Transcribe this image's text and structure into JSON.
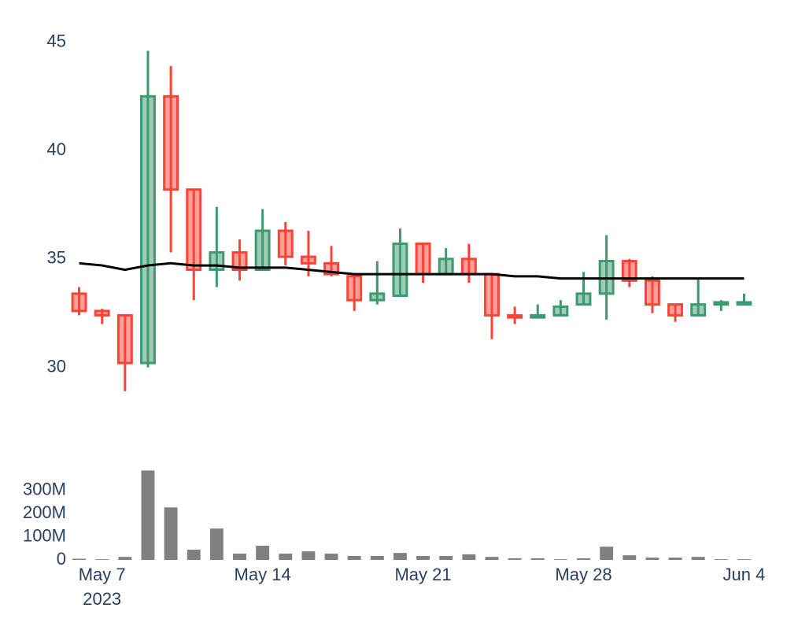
{
  "chart_data": {
    "type": "candlestick",
    "x": [
      "2023-05-06",
      "2023-05-07",
      "2023-05-08",
      "2023-05-09",
      "2023-05-10",
      "2023-05-11",
      "2023-05-12",
      "2023-05-13",
      "2023-05-14",
      "2023-05-15",
      "2023-05-16",
      "2023-05-17",
      "2023-05-18",
      "2023-05-19",
      "2023-05-20",
      "2023-05-21",
      "2023-05-22",
      "2023-05-23",
      "2023-05-24",
      "2023-05-25",
      "2023-05-26",
      "2023-05-27",
      "2023-05-28",
      "2023-05-29",
      "2023-05-30",
      "2023-05-31",
      "2023-06-01",
      "2023-06-02",
      "2023-06-03",
      "2023-06-04"
    ],
    "open": [
      33.4,
      32.6,
      32.4,
      30.2,
      42.5,
      38.2,
      34.5,
      35.3,
      34.5,
      36.3,
      35.1,
      34.8,
      34.2,
      33.1,
      33.3,
      35.7,
      34.3,
      35.0,
      34.3,
      32.4,
      32.3,
      32.4,
      32.9,
      33.4,
      34.9,
      34.0,
      32.9,
      32.4,
      32.9,
      32.9
    ],
    "high": [
      33.7,
      32.7,
      32.4,
      44.6,
      43.9,
      38.2,
      37.4,
      35.9,
      37.3,
      36.7,
      36.3,
      35.6,
      34.2,
      34.9,
      36.4,
      35.7,
      35.5,
      35.7,
      34.3,
      32.8,
      32.9,
      33.1,
      34.4,
      36.1,
      35.0,
      34.2,
      32.9,
      34.1,
      33.1,
      33.4
    ],
    "low": [
      32.4,
      32.0,
      28.9,
      30.0,
      35.3,
      33.1,
      33.7,
      34.0,
      34.5,
      34.7,
      34.2,
      34.2,
      32.6,
      32.9,
      33.3,
      33.9,
      34.3,
      33.9,
      31.3,
      32.0,
      32.3,
      32.4,
      32.9,
      32.2,
      33.7,
      32.5,
      32.1,
      32.4,
      32.6,
      32.9
    ],
    "close": [
      32.6,
      32.4,
      30.2,
      42.5,
      38.2,
      34.5,
      35.3,
      34.5,
      36.3,
      35.1,
      34.8,
      34.3,
      33.1,
      33.4,
      35.7,
      34.3,
      35.0,
      34.3,
      32.4,
      32.3,
      32.4,
      32.8,
      33.4,
      34.9,
      34.0,
      32.9,
      32.4,
      32.9,
      33.0,
      33.0
    ],
    "increasing_color": "#3d9970",
    "decreasing_color": "#ff4136",
    "ma": {
      "color": "#000000",
      "values": [
        34.8,
        34.7,
        34.5,
        34.7,
        34.8,
        34.7,
        34.7,
        34.6,
        34.6,
        34.6,
        34.5,
        34.4,
        34.3,
        34.3,
        34.3,
        34.3,
        34.3,
        34.3,
        34.3,
        34.2,
        34.2,
        34.1,
        34.1,
        34.1,
        34.1,
        34.1,
        34.1,
        34.1,
        34.1,
        34.1
      ]
    },
    "xlim": [
      "2023-05-05T12:00",
      "2023-06-04T12:00"
    ],
    "xticks": [
      {
        "value": "2023-05-07",
        "label": "May 7"
      },
      {
        "value": "2023-05-14",
        "label": "May 14"
      },
      {
        "value": "2023-05-21",
        "label": "May 21"
      },
      {
        "value": "2023-05-28",
        "label": "May 28"
      },
      {
        "value": "2023-06-04",
        "label": "Jun 4"
      }
    ],
    "xtick_year": "2023",
    "ylim": [
      28.6,
      45.2
    ],
    "yticks": [
      30,
      35,
      40,
      45
    ],
    "volume": {
      "color": "#808080",
      "values": [
        5000000,
        3000000,
        13000000,
        385000000,
        226000000,
        44000000,
        135000000,
        27000000,
        61000000,
        27000000,
        37000000,
        27000000,
        17000000,
        17000000,
        30000000,
        17000000,
        17000000,
        24000000,
        13000000,
        7000000,
        7000000,
        3000000,
        7000000,
        57000000,
        20000000,
        10000000,
        10000000,
        13000000,
        3000000,
        3000000
      ],
      "ylim": [
        0,
        400000000
      ],
      "yticks": [
        0,
        {
          "value": 100000000,
          "label": "100M"
        },
        {
          "value": 200000000,
          "label": "200M"
        },
        {
          "value": 300000000,
          "label": "300M"
        }
      ]
    }
  }
}
